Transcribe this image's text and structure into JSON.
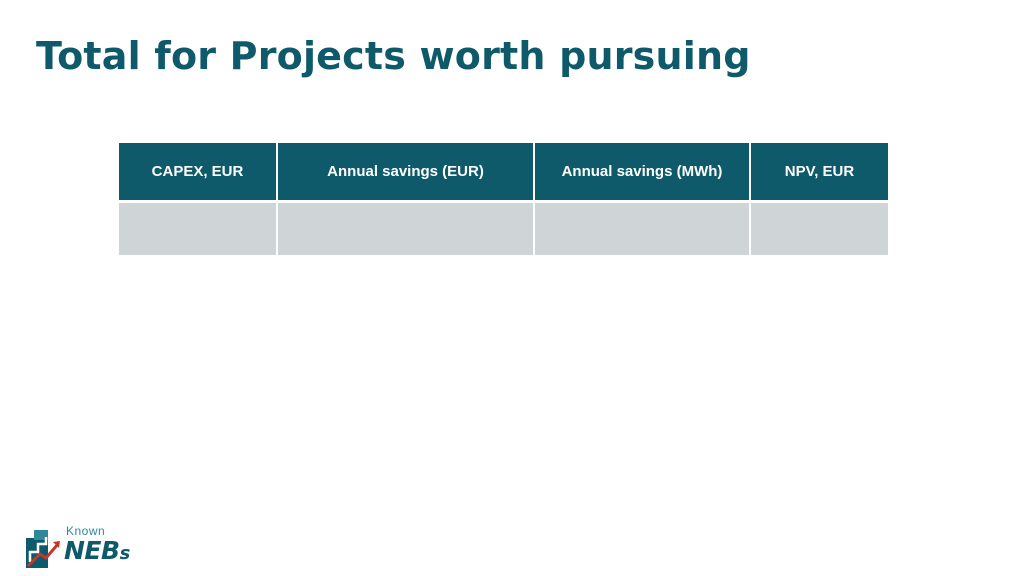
{
  "slide": {
    "title": "Total for Projects worth pursuing"
  },
  "table": {
    "headers": [
      "CAPEX, EUR",
      "Annual savings (EUR)",
      "Annual savings (MWh)",
      "NPV, EUR"
    ],
    "rows": [
      [
        "",
        "",
        "",
        ""
      ]
    ]
  },
  "logo": {
    "top_text": "Known",
    "main_text": "NEB",
    "suffix_text": "s",
    "icon": "staircase-arrow-icon",
    "colors": {
      "teal_dark": "#0e5a6a",
      "teal_light": "#2e8a9a",
      "accent_red": "#c0392b"
    }
  },
  "colors": {
    "header_bg": "#0e5a6a",
    "row_bg": "#cfd5d7",
    "title": "#0e5a6a"
  }
}
